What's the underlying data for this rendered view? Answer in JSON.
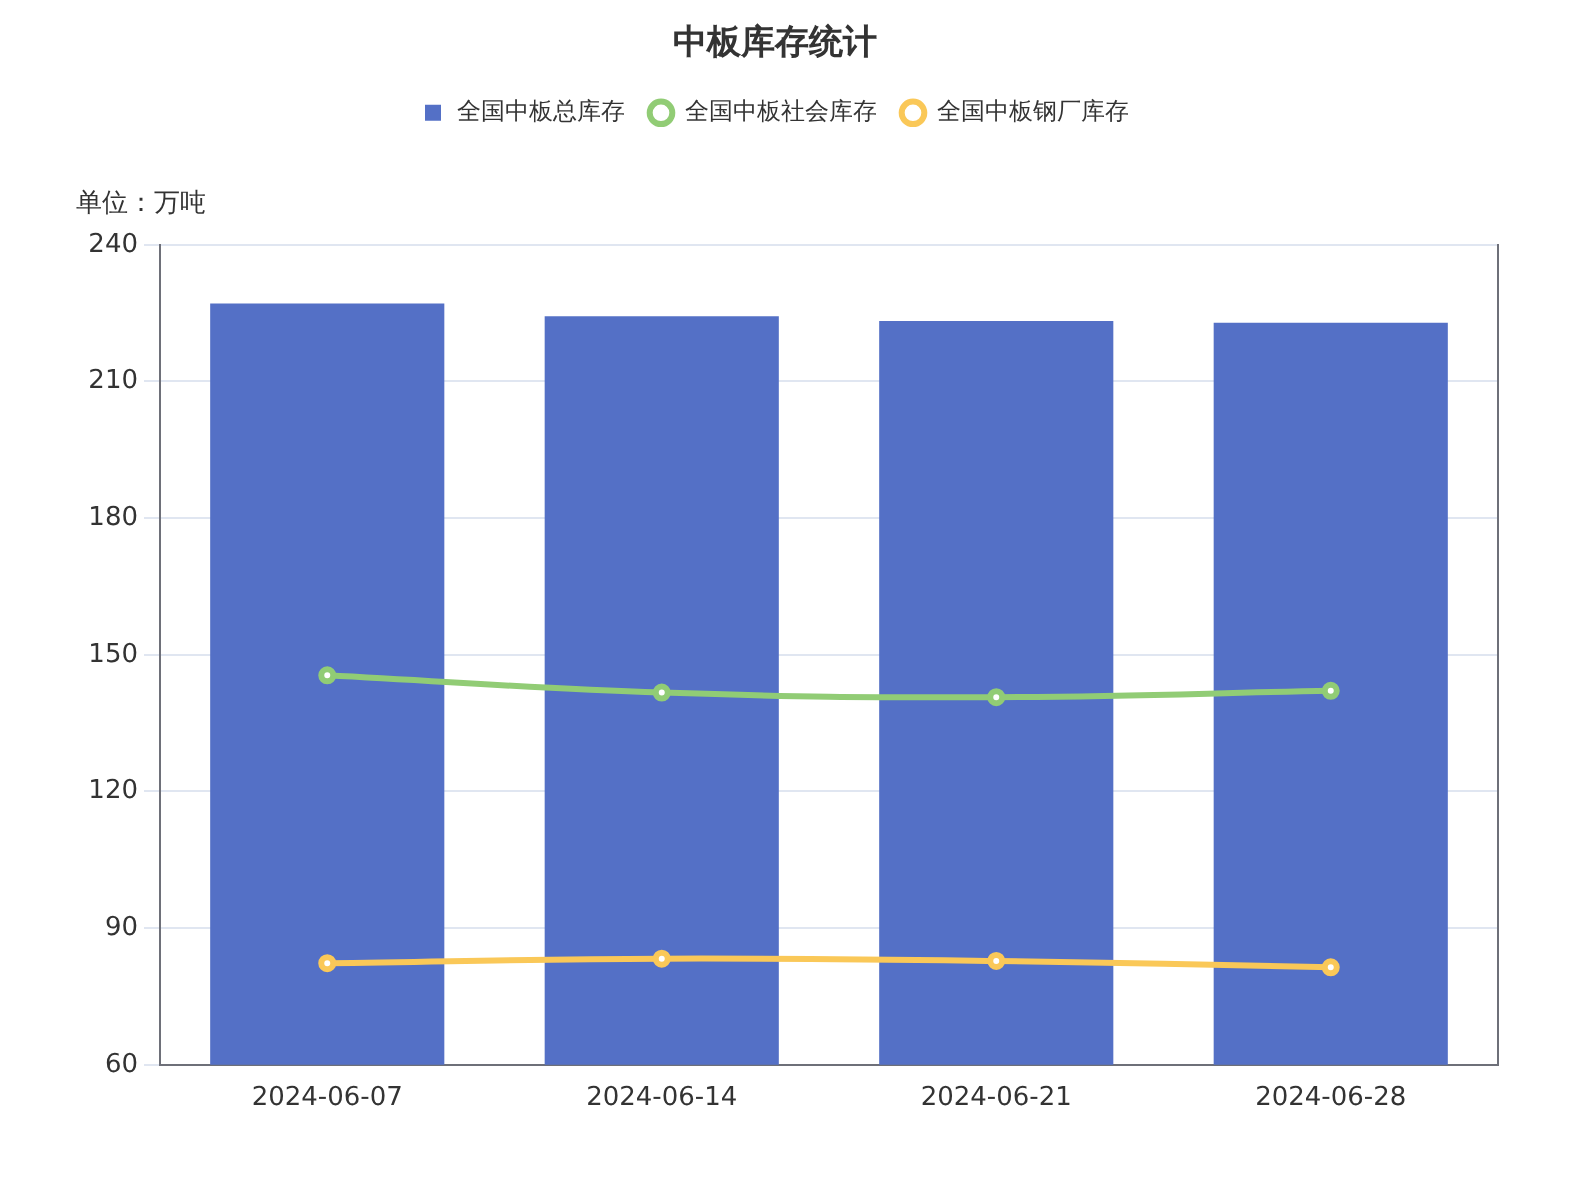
{
  "chart_data": {
    "type": "bar",
    "title": "中板库存统计",
    "ylabel": "单位：万吨",
    "categories": [
      "2024-06-07",
      "2024-06-14",
      "2024-06-21",
      "2024-06-28"
    ],
    "series": [
      {
        "name": "全国中板总库存",
        "color": "#5470c6",
        "values": [
          227.1,
          224.3,
          223.3,
          222.9
        ]
      },
      {
        "name": "全国中板社会库存",
        "type": "line",
        "color": "#91cc75",
        "values": [
          145.5,
          141.7,
          140.7,
          142.1
        ]
      },
      {
        "name": "全国中板钢厂库存",
        "type": "line",
        "color": "#fac858",
        "values": [
          82.3,
          83.3,
          82.8,
          81.4
        ]
      }
    ],
    "ylim": [
      60,
      240
    ],
    "yticks": [
      60,
      90,
      120,
      150,
      180,
      210,
      240
    ],
    "grid": "y",
    "legend": "top",
    "marker": "circle"
  }
}
